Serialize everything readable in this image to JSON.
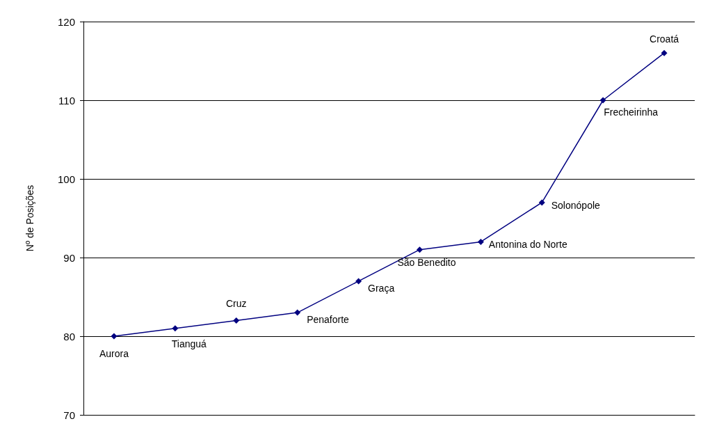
{
  "chart_data": {
    "type": "line",
    "ylabel": "Nº de Posições",
    "categories": [
      null,
      null,
      null,
      null,
      null,
      null,
      null,
      null,
      null,
      null
    ],
    "values": [
      80,
      81,
      82,
      83,
      87,
      91,
      92,
      97,
      110,
      116
    ],
    "value_labels": [
      "Aurora",
      "Tianguá",
      "Cruz",
      "Penaforte",
      "Graça",
      "São Benedito",
      "Antonina do Norte",
      "Solonópole",
      "Frecheirinha",
      "Croatá"
    ],
    "color": "#000080",
    "marker": "diamond",
    "line_style": "solid",
    "ylim": [
      70,
      120
    ],
    "yticks": [
      70,
      80,
      90,
      100,
      110,
      120
    ],
    "grid": "y"
  }
}
